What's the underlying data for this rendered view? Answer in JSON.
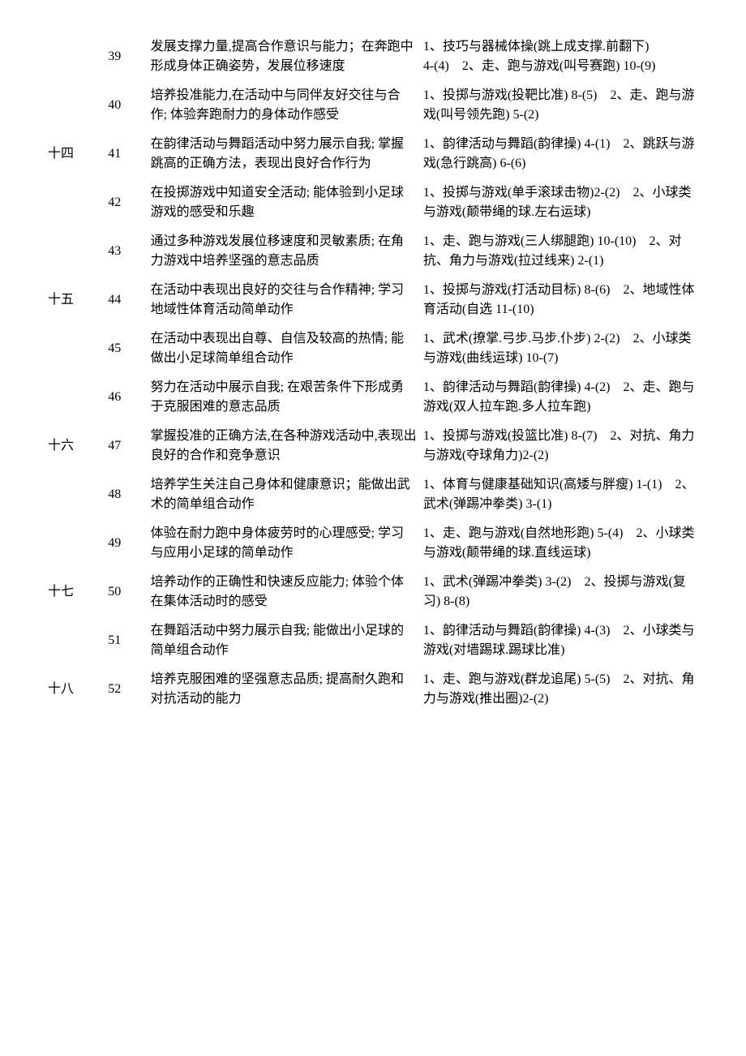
{
  "rows": [
    {
      "week": "",
      "num": "39",
      "objective": "发展支撑力量,提高合作意识与能力；在奔跑中形成身体正确姿势，发展位移速度",
      "content": "1、技巧与器械体操(跳上成支撑.前翻下)　　　　　4-(4)　2、走、跑与游戏(叫号赛跑) 10-(9)"
    },
    {
      "week": "",
      "num": "40",
      "objective": "培养投准能力,在活动中与同伴友好交往与合作; 体验奔跑耐力的身体动作感受",
      "content": "1、投掷与游戏(投靶比准) 8-(5)　2、走、跑与游戏(叫号领先跑) 5-(2)"
    },
    {
      "week": "十四",
      "num": "41",
      "objective": "在韵律活动与舞蹈活动中努力展示自我; 掌握跳高的正确方法，表现出良好合作行为",
      "content": "1、韵律活动与舞蹈(韵律操) 4-(1)　2、跳跃与游戏(急行跳高) 6-(6)"
    },
    {
      "week": "",
      "num": "42",
      "objective": "在投掷游戏中知道安全活动; 能体验到小足球游戏的感受和乐趣",
      "content": "1、投掷与游戏(单手滚球击物)2-(2)　2、小球类与游戏(颠带绳的球.左右运球)"
    },
    {
      "week": "",
      "num": "43",
      "objective": "通过多种游戏发展位移速度和灵敏素质; 在角力游戏中培养坚强的意志品质",
      "content": "1、走、跑与游戏(三人绑腿跑) 10-(10)　2、对抗、角力与游戏(拉过线来) 2-(1)"
    },
    {
      "week": "十五",
      "num": "44",
      "objective": "在活动中表现出良好的交往与合作精神; 学习地域性体育活动简单动作",
      "content": "1、投掷与游戏(打活动目标) 8-(6)　2、地域性体育活动(自选 11-(10)"
    },
    {
      "week": "",
      "num": "45",
      "objective": "在活动中表现出自尊、自信及较高的热情; 能做出小足球简单组合动作",
      "content": "1、武术(撩掌.弓步.马步.仆步) 2-(2)　2、小球类与游戏(曲线运球) 10-(7)"
    },
    {
      "week": "",
      "num": "46",
      "objective": "努力在活动中展示自我; 在艰苦条件下形成勇于克服困难的意志品质",
      "content": "1、韵律活动与舞蹈(韵律操) 4-(2)　2、走、跑与游戏(双人拉车跑.多人拉车跑)"
    },
    {
      "week": "十六",
      "num": "47",
      "objective": "掌握投准的正确方法,在各种游戏活动中,表现出良好的合作和竞争意识",
      "content": "1、投掷与游戏(投篮比准) 8-(7)　2、对抗、角力与游戏(夺球角力)2-(2)"
    },
    {
      "week": "",
      "num": "48",
      "objective": "培养学生关注自己身体和健康意识；能做出武术的简单组合动作",
      "content": "1、体育与健康基础知识(高矮与胖瘦) 1-(1)　2、武术(弹踢冲拳类) 3-(1)"
    },
    {
      "week": "",
      "num": "49",
      "objective": "体验在耐力跑中身体疲劳时的心理感受; 学习与应用小足球的简单动作",
      "content": "1、走、跑与游戏(自然地形跑) 5-(4)　2、小球类与游戏(颠带绳的球.直线运球)"
    },
    {
      "week": "十七",
      "num": "50",
      "objective": "培养动作的正确性和快速反应能力; 体验个体在集体活动时的感受",
      "content": "1、武术(弹踢冲拳类) 3-(2)　2、投掷与游戏(复习) 8-(8)"
    },
    {
      "week": "",
      "num": "51",
      "objective": "在舞蹈活动中努力展示自我; 能做出小足球的简单组合动作",
      "content": "1、韵律活动与舞蹈(韵律操) 4-(3)　2、小球类与游戏(对墙踢球.踢球比准)"
    },
    {
      "week": "十八",
      "num": "52",
      "objective": "培养克服困难的坚强意志品质; 提高耐久跑和对抗活动的能力",
      "content": "1、走、跑与游戏(群龙追尾) 5-(5)　2、对抗、角力与游戏(推出圈)2-(2)"
    }
  ]
}
